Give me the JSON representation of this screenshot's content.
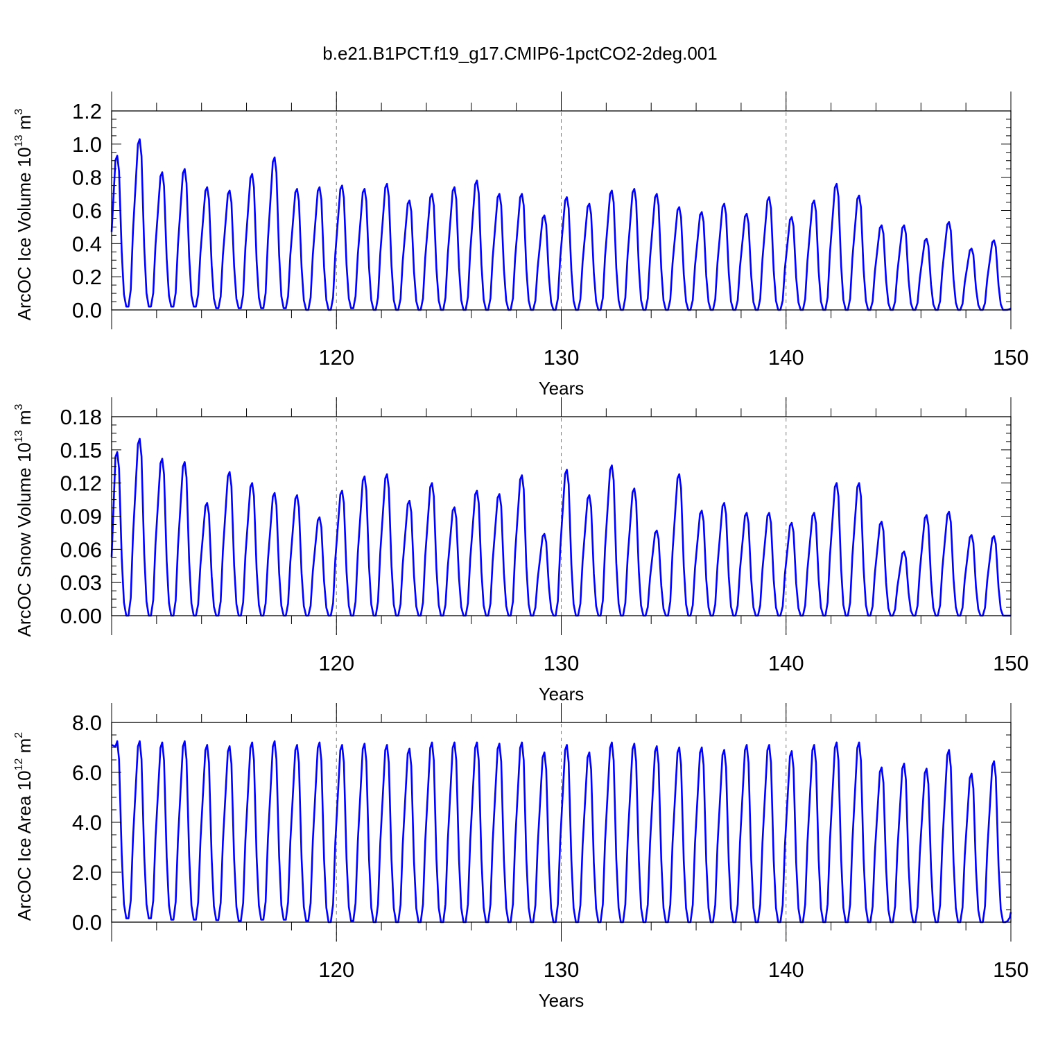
{
  "title": "b.e21.B1PCT.f19_g17.CMIP6-1pctCO2-2deg.001",
  "colors": {
    "line": "#0000ff",
    "axis": "#000000",
    "grid": "#808080"
  },
  "chart_data": [
    {
      "type": "line",
      "ylabel": {
        "main": "ArcOC Ice Volume 10",
        "exp": "13",
        "unit": " m",
        "unit_exp": "3"
      },
      "xlabel": "Years",
      "xlim": [
        110,
        150
      ],
      "ylim": [
        0,
        1.2
      ],
      "yticks": [
        "0.0",
        "0.2",
        "0.4",
        "0.6",
        "0.8",
        "1.0",
        "1.2"
      ],
      "yticks_values": [
        0,
        0.2,
        0.4,
        0.6,
        0.8,
        1.0,
        1.2
      ],
      "xticks": [
        "120",
        "130",
        "140",
        "150"
      ],
      "xticks_values": [
        120,
        130,
        140,
        150
      ],
      "grid_x": [
        120,
        130,
        140
      ],
      "series": [
        {
          "annual_max": [
            0.93,
            1.03,
            0.83,
            0.85,
            0.74,
            0.72,
            0.82,
            0.92,
            0.73,
            0.74,
            0.75,
            0.73,
            0.76,
            0.66,
            0.7,
            0.74,
            0.78,
            0.7,
            0.7,
            0.57,
            0.68,
            0.64,
            0.72,
            0.73,
            0.7,
            0.62,
            0.59,
            0.64,
            0.58,
            0.68,
            0.56,
            0.66,
            0.76,
            0.69,
            0.51,
            0.51,
            0.43,
            0.53,
            0.37,
            0.42
          ],
          "annual_min": [
            0.02,
            0.02,
            0.02,
            0.02,
            0.01,
            0.01,
            0.01,
            0.01,
            0.0,
            0.0,
            0.01,
            0.0,
            0.0,
            0.0,
            0.0,
            0.0,
            0.0,
            0.0,
            0.0,
            0.0,
            0.0,
            0.0,
            0.0,
            0.0,
            0.0,
            0.0,
            0.0,
            0.0,
            0.0,
            0.0,
            0.0,
            0.0,
            0.0,
            0.0,
            0.0,
            0.0,
            0.0,
            0.0,
            0.0,
            0.0
          ],
          "start_value": 0.47,
          "end_value": 0.01
        }
      ]
    },
    {
      "type": "line",
      "ylabel": {
        "main": "ArcOC Snow Volume 10",
        "exp": "13",
        "unit": " m",
        "unit_exp": "3"
      },
      "xlabel": "Years",
      "xlim": [
        110,
        150
      ],
      "ylim": [
        0,
        0.18
      ],
      "yticks": [
        "0.00",
        "0.03",
        "0.06",
        "0.09",
        "0.12",
        "0.15",
        "0.18"
      ],
      "yticks_values": [
        0,
        0.03,
        0.06,
        0.09,
        0.12,
        0.15,
        0.18
      ],
      "xticks": [
        "120",
        "130",
        "140",
        "150"
      ],
      "xticks_values": [
        120,
        130,
        140,
        150
      ],
      "grid_x": [
        120,
        130,
        140
      ],
      "series": [
        {
          "annual_max": [
            0.148,
            0.16,
            0.142,
            0.139,
            0.102,
            0.13,
            0.12,
            0.111,
            0.109,
            0.089,
            0.113,
            0.126,
            0.128,
            0.104,
            0.12,
            0.098,
            0.113,
            0.11,
            0.127,
            0.074,
            0.132,
            0.109,
            0.136,
            0.115,
            0.077,
            0.128,
            0.095,
            0.102,
            0.093,
            0.093,
            0.084,
            0.093,
            0.12,
            0.12,
            0.085,
            0.058,
            0.091,
            0.094,
            0.073,
            0.072
          ],
          "annual_min": [
            0,
            0,
            0,
            0,
            0,
            0,
            0,
            0,
            0,
            0,
            0,
            0,
            0,
            0,
            0,
            0,
            0,
            0,
            0,
            0,
            0,
            0,
            0,
            0,
            0,
            0,
            0,
            0,
            0,
            0,
            0,
            0,
            0,
            0,
            0,
            0,
            0,
            0,
            0,
            0
          ],
          "start_value": 0.053,
          "end_value": 0.0
        }
      ]
    },
    {
      "type": "line",
      "ylabel": {
        "main": "ArcOC Ice Area 10",
        "exp": "12",
        "unit": " m",
        "unit_exp": "2"
      },
      "xlabel": "Years",
      "xlim": [
        110,
        150
      ],
      "ylim": [
        0,
        8.0
      ],
      "yticks": [
        "0.0",
        "2.0",
        "4.0",
        "6.0",
        "8.0"
      ],
      "yticks_values": [
        0,
        2,
        4,
        6,
        8
      ],
      "xticks": [
        "120",
        "130",
        "140",
        "150"
      ],
      "xticks_values": [
        120,
        130,
        140,
        150
      ],
      "grid_x": [
        120,
        130,
        140
      ],
      "series": [
        {
          "annual_max": [
            7.25,
            7.25,
            7.2,
            7.25,
            7.1,
            7.05,
            7.2,
            7.25,
            7.1,
            7.2,
            7.1,
            7.15,
            7.1,
            6.95,
            7.2,
            7.2,
            7.2,
            7.15,
            7.2,
            6.8,
            7.1,
            6.8,
            7.2,
            7.15,
            7.05,
            7.0,
            7.0,
            6.9,
            7.1,
            7.1,
            6.85,
            7.1,
            7.2,
            7.2,
            6.2,
            6.35,
            6.15,
            6.9,
            5.95,
            6.45
          ],
          "annual_min": [
            0.15,
            0.15,
            0.1,
            0.1,
            0.08,
            0.05,
            0.1,
            0.1,
            0.05,
            0.0,
            0.05,
            0.0,
            0.0,
            0.0,
            0.0,
            0.0,
            0.0,
            0.0,
            0.0,
            0.0,
            0.0,
            0.0,
            0.0,
            0.0,
            0.0,
            0.0,
            0.0,
            0.0,
            0.0,
            0.0,
            0.0,
            0.0,
            0.0,
            0.0,
            0.0,
            0.0,
            0.0,
            0.0,
            0.0,
            0.0
          ],
          "start_value": 7.1,
          "end_value": 0.4
        }
      ]
    }
  ]
}
